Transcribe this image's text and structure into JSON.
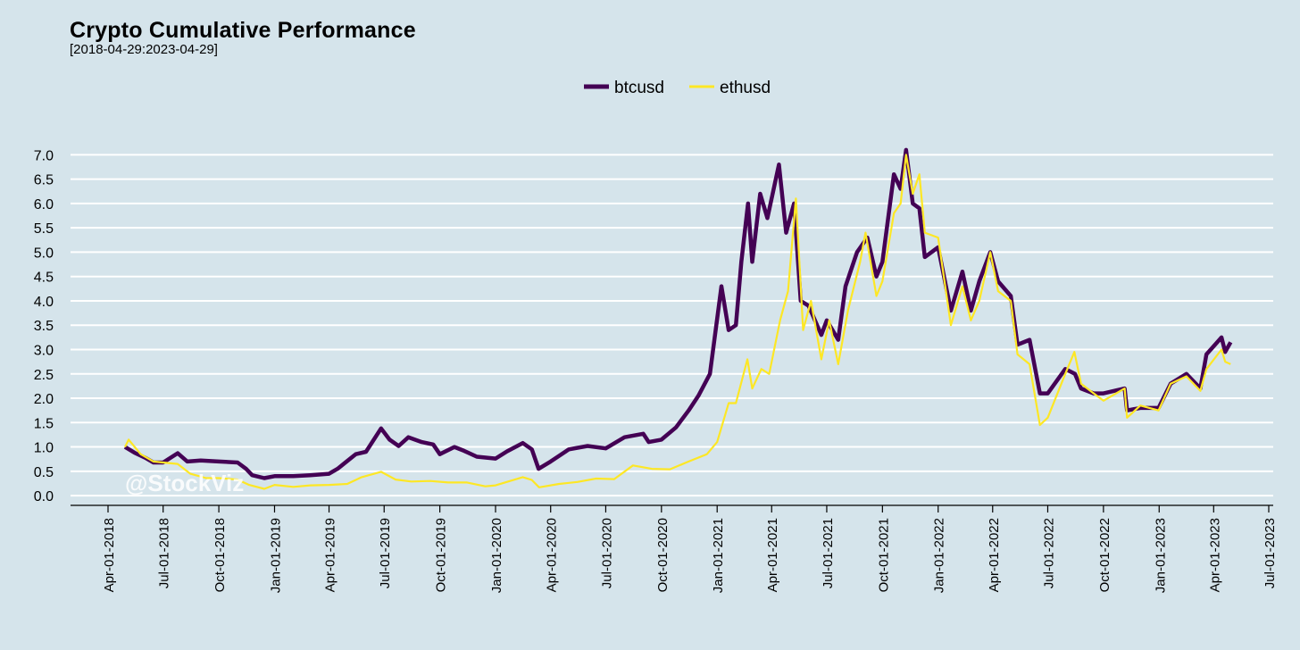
{
  "chart_data": {
    "type": "line",
    "title": "Crypto Cumulative Performance",
    "subtitle": "[2018-04-29:2023-04-29]",
    "xlabel": "",
    "ylabel": "",
    "xlim": [
      "2018-04-01",
      "2023-07-01"
    ],
    "ylim": [
      -0.2,
      7.3
    ],
    "x_tick_labels": [
      "Apr-01-2018",
      "Jul-01-2018",
      "Oct-01-2018",
      "Jan-01-2019",
      "Apr-01-2019",
      "Jul-01-2019",
      "Oct-01-2019",
      "Jan-01-2020",
      "Apr-01-2020",
      "Jul-01-2020",
      "Oct-01-2020",
      "Jan-01-2021",
      "Apr-01-2021",
      "Jul-01-2021",
      "Oct-01-2021",
      "Jan-01-2022",
      "Apr-01-2022",
      "Jul-01-2022",
      "Oct-01-2022",
      "Jan-01-2023",
      "Apr-01-2023",
      "Jul-01-2023"
    ],
    "y_ticks": [
      "0.0",
      "0.5",
      "1.0",
      "1.5",
      "2.0",
      "2.5",
      "3.0",
      "3.5",
      "4.0",
      "4.5",
      "5.0",
      "5.5",
      "6.0",
      "6.5",
      "7.0"
    ],
    "grid": true,
    "legend_position": "top",
    "watermark": "@StockViz",
    "series": [
      {
        "name": "btcusd",
        "color": "#440154",
        "points": [
          [
            "2018-04-29",
            1.0
          ],
          [
            "2018-05-15",
            0.88
          ],
          [
            "2018-06-01",
            0.78
          ],
          [
            "2018-06-15",
            0.68
          ],
          [
            "2018-07-01",
            0.68
          ],
          [
            "2018-07-25",
            0.87
          ],
          [
            "2018-08-10",
            0.7
          ],
          [
            "2018-09-01",
            0.72
          ],
          [
            "2018-10-01",
            0.7
          ],
          [
            "2018-11-01",
            0.68
          ],
          [
            "2018-11-15",
            0.55
          ],
          [
            "2018-11-25",
            0.42
          ],
          [
            "2018-12-15",
            0.36
          ],
          [
            "2019-01-01",
            0.4
          ],
          [
            "2019-02-01",
            0.4
          ],
          [
            "2019-03-01",
            0.42
          ],
          [
            "2019-04-01",
            0.45
          ],
          [
            "2019-04-15",
            0.55
          ],
          [
            "2019-05-15",
            0.85
          ],
          [
            "2019-06-01",
            0.9
          ],
          [
            "2019-06-26",
            1.38
          ],
          [
            "2019-07-10",
            1.15
          ],
          [
            "2019-07-25",
            1.02
          ],
          [
            "2019-08-10",
            1.2
          ],
          [
            "2019-09-01",
            1.1
          ],
          [
            "2019-09-20",
            1.05
          ],
          [
            "2019-10-01",
            0.85
          ],
          [
            "2019-10-25",
            1.0
          ],
          [
            "2019-11-10",
            0.92
          ],
          [
            "2019-12-01",
            0.8
          ],
          [
            "2020-01-01",
            0.76
          ],
          [
            "2020-01-20",
            0.91
          ],
          [
            "2020-02-15",
            1.08
          ],
          [
            "2020-03-01",
            0.95
          ],
          [
            "2020-03-12",
            0.55
          ],
          [
            "2020-04-01",
            0.7
          ],
          [
            "2020-05-01",
            0.95
          ],
          [
            "2020-06-01",
            1.02
          ],
          [
            "2020-07-01",
            0.97
          ],
          [
            "2020-08-01",
            1.2
          ],
          [
            "2020-09-01",
            1.27
          ],
          [
            "2020-09-10",
            1.1
          ],
          [
            "2020-10-01",
            1.15
          ],
          [
            "2020-10-25",
            1.4
          ],
          [
            "2020-11-15",
            1.75
          ],
          [
            "2020-12-01",
            2.05
          ],
          [
            "2020-12-20",
            2.5
          ],
          [
            "2021-01-08",
            4.3
          ],
          [
            "2021-01-20",
            3.4
          ],
          [
            "2021-02-01",
            3.5
          ],
          [
            "2021-02-10",
            4.8
          ],
          [
            "2021-02-21",
            6.0
          ],
          [
            "2021-02-28",
            4.8
          ],
          [
            "2021-03-13",
            6.2
          ],
          [
            "2021-03-25",
            5.7
          ],
          [
            "2021-04-13",
            6.8
          ],
          [
            "2021-04-25",
            5.4
          ],
          [
            "2021-05-08",
            6.0
          ],
          [
            "2021-05-19",
            4.0
          ],
          [
            "2021-06-01",
            3.9
          ],
          [
            "2021-06-22",
            3.3
          ],
          [
            "2021-07-01",
            3.6
          ],
          [
            "2021-07-20",
            3.2
          ],
          [
            "2021-08-01",
            4.3
          ],
          [
            "2021-08-20",
            5.0
          ],
          [
            "2021-09-06",
            5.3
          ],
          [
            "2021-09-21",
            4.5
          ],
          [
            "2021-10-01",
            4.8
          ],
          [
            "2021-10-20",
            6.6
          ],
          [
            "2021-10-31",
            6.3
          ],
          [
            "2021-11-09",
            7.1
          ],
          [
            "2021-11-20",
            6.0
          ],
          [
            "2021-12-01",
            5.9
          ],
          [
            "2021-12-10",
            4.9
          ],
          [
            "2022-01-01",
            5.1
          ],
          [
            "2022-01-22",
            3.8
          ],
          [
            "2022-02-10",
            4.6
          ],
          [
            "2022-02-24",
            3.8
          ],
          [
            "2022-03-10",
            4.4
          ],
          [
            "2022-03-28",
            5.0
          ],
          [
            "2022-04-10",
            4.4
          ],
          [
            "2022-05-01",
            4.1
          ],
          [
            "2022-05-12",
            3.1
          ],
          [
            "2022-06-01",
            3.2
          ],
          [
            "2022-06-18",
            2.1
          ],
          [
            "2022-07-01",
            2.1
          ],
          [
            "2022-07-30",
            2.6
          ],
          [
            "2022-08-15",
            2.5
          ],
          [
            "2022-08-25",
            2.2
          ],
          [
            "2022-09-15",
            2.1
          ],
          [
            "2022-10-01",
            2.1
          ],
          [
            "2022-11-05",
            2.2
          ],
          [
            "2022-11-09",
            1.75
          ],
          [
            "2022-12-01",
            1.8
          ],
          [
            "2022-12-31",
            1.8
          ],
          [
            "2023-01-20",
            2.3
          ],
          [
            "2023-02-15",
            2.5
          ],
          [
            "2023-03-10",
            2.2
          ],
          [
            "2023-03-20",
            2.9
          ],
          [
            "2023-04-14",
            3.25
          ],
          [
            "2023-04-20",
            2.95
          ],
          [
            "2023-04-29",
            3.15
          ]
        ]
      },
      {
        "name": "ethusd",
        "color": "#fde725",
        "points": [
          [
            "2018-04-29",
            1.0
          ],
          [
            "2018-05-05",
            1.15
          ],
          [
            "2018-05-25",
            0.85
          ],
          [
            "2018-06-15",
            0.7
          ],
          [
            "2018-07-01",
            0.68
          ],
          [
            "2018-07-25",
            0.65
          ],
          [
            "2018-08-15",
            0.45
          ],
          [
            "2018-09-10",
            0.36
          ],
          [
            "2018-10-01",
            0.36
          ],
          [
            "2018-11-01",
            0.33
          ],
          [
            "2018-11-20",
            0.22
          ],
          [
            "2018-12-15",
            0.14
          ],
          [
            "2019-01-01",
            0.22
          ],
          [
            "2019-02-01",
            0.18
          ],
          [
            "2019-03-01",
            0.21
          ],
          [
            "2019-04-01",
            0.22
          ],
          [
            "2019-05-01",
            0.24
          ],
          [
            "2019-05-25",
            0.38
          ],
          [
            "2019-06-26",
            0.49
          ],
          [
            "2019-07-20",
            0.33
          ],
          [
            "2019-08-15",
            0.29
          ],
          [
            "2019-09-15",
            0.3
          ],
          [
            "2019-10-15",
            0.27
          ],
          [
            "2019-11-15",
            0.27
          ],
          [
            "2019-12-15",
            0.19
          ],
          [
            "2020-01-01",
            0.21
          ],
          [
            "2020-02-15",
            0.38
          ],
          [
            "2020-03-01",
            0.32
          ],
          [
            "2020-03-13",
            0.17
          ],
          [
            "2020-04-15",
            0.24
          ],
          [
            "2020-05-15",
            0.28
          ],
          [
            "2020-06-15",
            0.35
          ],
          [
            "2020-07-15",
            0.34
          ],
          [
            "2020-08-15",
            0.62
          ],
          [
            "2020-09-15",
            0.55
          ],
          [
            "2020-10-15",
            0.54
          ],
          [
            "2020-11-15",
            0.7
          ],
          [
            "2020-12-15",
            0.85
          ],
          [
            "2021-01-01",
            1.1
          ],
          [
            "2021-01-20",
            1.9
          ],
          [
            "2021-02-01",
            1.9
          ],
          [
            "2021-02-20",
            2.8
          ],
          [
            "2021-02-28",
            2.2
          ],
          [
            "2021-03-15",
            2.6
          ],
          [
            "2021-03-28",
            2.5
          ],
          [
            "2021-04-15",
            3.6
          ],
          [
            "2021-04-28",
            4.2
          ],
          [
            "2021-05-11",
            6.1
          ],
          [
            "2021-05-23",
            3.4
          ],
          [
            "2021-06-05",
            4.0
          ],
          [
            "2021-06-22",
            2.8
          ],
          [
            "2021-07-05",
            3.6
          ],
          [
            "2021-07-20",
            2.7
          ],
          [
            "2021-08-05",
            3.8
          ],
          [
            "2021-08-25",
            4.8
          ],
          [
            "2021-09-03",
            5.4
          ],
          [
            "2021-09-21",
            4.1
          ],
          [
            "2021-10-01",
            4.4
          ],
          [
            "2021-10-20",
            5.8
          ],
          [
            "2021-10-31",
            6.0
          ],
          [
            "2021-11-09",
            7.0
          ],
          [
            "2021-11-20",
            6.2
          ],
          [
            "2021-12-01",
            6.6
          ],
          [
            "2021-12-10",
            5.4
          ],
          [
            "2022-01-01",
            5.3
          ],
          [
            "2022-01-22",
            3.5
          ],
          [
            "2022-02-10",
            4.3
          ],
          [
            "2022-02-24",
            3.6
          ],
          [
            "2022-03-10",
            4.0
          ],
          [
            "2022-03-28",
            5.0
          ],
          [
            "2022-04-10",
            4.2
          ],
          [
            "2022-05-01",
            4.0
          ],
          [
            "2022-05-12",
            2.9
          ],
          [
            "2022-06-01",
            2.7
          ],
          [
            "2022-06-18",
            1.45
          ],
          [
            "2022-07-01",
            1.6
          ],
          [
            "2022-07-30",
            2.5
          ],
          [
            "2022-08-14",
            2.95
          ],
          [
            "2022-08-25",
            2.3
          ],
          [
            "2022-09-15",
            2.1
          ],
          [
            "2022-10-01",
            1.95
          ],
          [
            "2022-11-05",
            2.2
          ],
          [
            "2022-11-09",
            1.6
          ],
          [
            "2022-12-01",
            1.85
          ],
          [
            "2022-12-31",
            1.75
          ],
          [
            "2023-01-20",
            2.3
          ],
          [
            "2023-02-15",
            2.45
          ],
          [
            "2023-03-10",
            2.15
          ],
          [
            "2023-03-20",
            2.6
          ],
          [
            "2023-04-14",
            3.0
          ],
          [
            "2023-04-20",
            2.75
          ],
          [
            "2023-04-29",
            2.7
          ]
        ]
      }
    ]
  }
}
